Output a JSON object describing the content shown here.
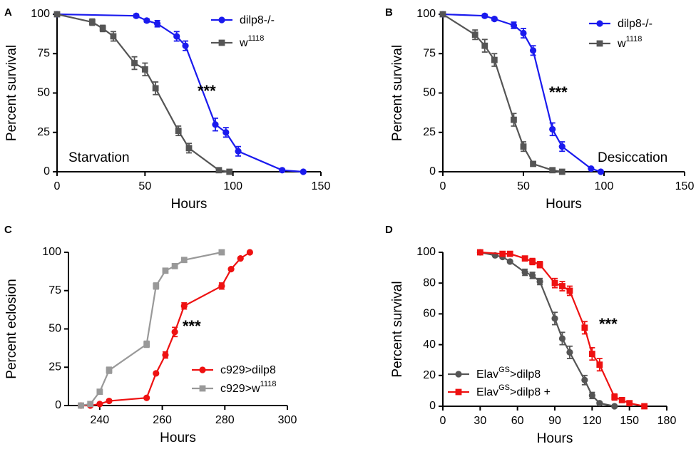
{
  "colors": {
    "blue": "#1a1aee",
    "darkgray": "#555555",
    "lightgray": "#999999",
    "red": "#ee1111",
    "axis": "#000000"
  },
  "chart_data": [
    {
      "panel": "A",
      "type": "line",
      "xlabel": "Hours",
      "ylabel": "Percent survival",
      "xlim": [
        0,
        150
      ],
      "ylim": [
        0,
        100
      ],
      "xticks": [
        0,
        50,
        100,
        150
      ],
      "yticks": [
        0,
        25,
        50,
        75,
        100
      ],
      "annotation": "Starvation",
      "significance": "***",
      "legend_position": "top-right",
      "series": [
        {
          "name": "dilp8-/-",
          "name_main": "dilp8-/-",
          "name_sup": "",
          "name_tail": "",
          "color": "#1a1aee",
          "marker": "circle",
          "x": [
            0,
            45,
            51,
            57,
            68,
            73,
            90,
            96,
            103,
            128,
            140
          ],
          "y": [
            100,
            99,
            96,
            94,
            86,
            80,
            30,
            25,
            13,
            1,
            0
          ],
          "err": [
            0,
            1,
            1,
            2,
            3,
            3,
            4,
            3,
            3,
            0,
            0
          ]
        },
        {
          "name": "w1118",
          "name_main": "w",
          "name_sup": "1118",
          "name_tail": "",
          "color": "#555555",
          "marker": "square",
          "x": [
            0,
            20,
            26,
            32,
            44,
            50,
            56,
            69,
            75,
            92,
            98
          ],
          "y": [
            100,
            95,
            91,
            86,
            69,
            65,
            53,
            26,
            15,
            1,
            0
          ],
          "err": [
            0,
            2,
            2,
            3,
            4,
            4,
            4,
            3,
            3,
            0,
            0
          ]
        }
      ]
    },
    {
      "panel": "B",
      "type": "line",
      "xlabel": "Hours",
      "ylabel": "Percent survival",
      "xlim": [
        0,
        150
      ],
      "ylim": [
        0,
        100
      ],
      "xticks": [
        0,
        50,
        100,
        150
      ],
      "yticks": [
        0,
        25,
        50,
        75,
        100
      ],
      "annotation": "Desiccation",
      "significance": "***",
      "legend_position": "top-right",
      "series": [
        {
          "name": "dilp8-/-",
          "name_main": "dilp8-/-",
          "name_sup": "",
          "name_tail": "",
          "color": "#1a1aee",
          "marker": "circle",
          "x": [
            0,
            26,
            32,
            44,
            50,
            56,
            68,
            74,
            92,
            98
          ],
          "y": [
            100,
            99,
            97,
            93,
            88,
            77,
            27,
            16,
            2,
            0
          ],
          "err": [
            0,
            1,
            1,
            2,
            3,
            3,
            4,
            3,
            0,
            0
          ]
        },
        {
          "name": "w1118",
          "name_main": "w",
          "name_sup": "1118",
          "name_tail": "",
          "color": "#555555",
          "marker": "square",
          "x": [
            0,
            20,
            26,
            32,
            44,
            50,
            56,
            68,
            74
          ],
          "y": [
            100,
            87,
            80,
            71,
            33,
            16,
            5,
            1,
            0
          ],
          "err": [
            0,
            3,
            4,
            4,
            4,
            3,
            0,
            0,
            0
          ]
        }
      ]
    },
    {
      "panel": "C",
      "type": "line",
      "xlabel": "Hours",
      "ylabel": "Percent eclosion",
      "xlim": [
        230,
        300
      ],
      "ylim": [
        0,
        100
      ],
      "xticks": [
        240,
        260,
        280,
        300
      ],
      "yticks": [
        0,
        25,
        50,
        75,
        100
      ],
      "annotation": "",
      "significance": "***",
      "legend_position": "bottom-right",
      "series": [
        {
          "name": "c929>dilp8",
          "name_main": "c929>dilp8",
          "name_sup": "",
          "name_tail": "",
          "color": "#ee1111",
          "marker": "circle",
          "x": [
            234,
            237,
            240,
            243,
            255,
            258,
            261,
            264,
            267,
            279,
            282,
            285,
            288
          ],
          "y": [
            0,
            0,
            1,
            3,
            5,
            21,
            33,
            48,
            65,
            78,
            89,
            96,
            100
          ],
          "err": [
            0,
            0,
            0,
            0,
            0,
            0,
            2,
            3,
            2,
            2,
            0,
            0,
            0
          ]
        },
        {
          "name": "c929>w1118",
          "name_main": "c929>w",
          "name_sup": "1118",
          "name_tail": "",
          "color": "#999999",
          "marker": "square",
          "x": [
            234,
            237,
            240,
            243,
            255,
            258,
            261,
            264,
            267,
            279
          ],
          "y": [
            0,
            1,
            9,
            23,
            40,
            78,
            88,
            91,
            95,
            100
          ],
          "err": [
            0,
            0,
            0,
            2,
            2,
            2,
            1,
            0,
            0,
            0
          ]
        }
      ]
    },
    {
      "panel": "D",
      "type": "line",
      "xlabel": "Hours",
      "ylabel": "Percent survival",
      "xlim": [
        0,
        180
      ],
      "ylim": [
        0,
        100
      ],
      "xticks": [
        0,
        30,
        60,
        90,
        120,
        150,
        180
      ],
      "yticks": [
        0,
        20,
        40,
        60,
        80,
        100
      ],
      "annotation": "",
      "significance": "***",
      "legend_position": "bottom-left",
      "series": [
        {
          "name": "ElavGS>dilp8",
          "name_main": "Elav",
          "name_sup": "GS",
          "name_tail": ">dilp8",
          "color": "#555555",
          "marker": "circle",
          "x": [
            30,
            42,
            48,
            54,
            66,
            72,
            78,
            90,
            96,
            102,
            114,
            120,
            126,
            138
          ],
          "y": [
            100,
            98,
            97,
            94,
            87,
            85,
            81,
            57,
            44,
            35,
            17,
            7,
            2,
            0
          ],
          "err": [
            0,
            0,
            0,
            0,
            2,
            2,
            2,
            4,
            4,
            4,
            3,
            2,
            0,
            0
          ]
        },
        {
          "name": "ElavGS>dilp8 +",
          "name_main": "Elav",
          "name_sup": "GS",
          "name_tail": ">dilp8 +",
          "color": "#ee1111",
          "marker": "square",
          "x": [
            30,
            48,
            54,
            66,
            72,
            78,
            90,
            96,
            102,
            114,
            120,
            126,
            138,
            144,
            150,
            162
          ],
          "y": [
            100,
            99,
            99,
            96,
            94,
            92,
            80,
            78,
            75,
            51,
            34,
            27,
            6,
            4,
            2,
            0
          ],
          "err": [
            0,
            1,
            1,
            1,
            2,
            2,
            3,
            3,
            3,
            4,
            4,
            4,
            2,
            0,
            0,
            0
          ]
        }
      ]
    }
  ]
}
